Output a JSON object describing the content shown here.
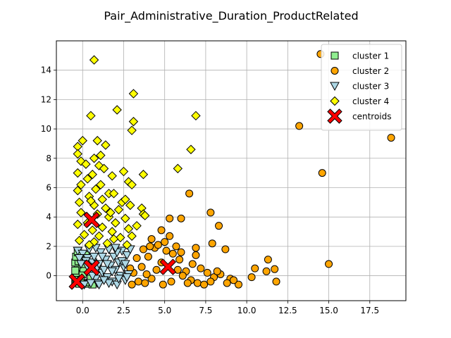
{
  "chart_data": {
    "type": "scatter",
    "title": "Pair_Administrative_Duration_ProductRelated",
    "xlabel": "",
    "ylabel": "",
    "xlim": [
      -1.6,
      19.7
    ],
    "ylim": [
      -1.7,
      16.0
    ],
    "xticks": [
      0.0,
      2.5,
      5.0,
      7.5,
      10.0,
      12.5,
      15.0,
      17.5
    ],
    "xtick_labels": [
      "0.0",
      "2.5",
      "5.0",
      "7.5",
      "10.0",
      "12.5",
      "15.0",
      "17.5"
    ],
    "yticks": [
      0,
      2,
      4,
      6,
      8,
      10,
      12,
      14
    ],
    "ytick_labels": [
      "0",
      "2",
      "4",
      "6",
      "8",
      "10",
      "12",
      "14"
    ],
    "grid": true,
    "legend_position": "top-right",
    "series": [
      {
        "name": "cluster 1",
        "marker": "square",
        "color": "#90ee90",
        "points": [
          [
            -0.45,
            -0.45
          ],
          [
            -0.4,
            -0.2
          ],
          [
            -0.35,
            0.2
          ],
          [
            -0.3,
            0.6
          ],
          [
            -0.45,
            0.9
          ],
          [
            -0.2,
            -0.55
          ],
          [
            -0.1,
            -0.3
          ],
          [
            0.0,
            0.1
          ],
          [
            0.05,
            0.5
          ],
          [
            -0.25,
            1.0
          ],
          [
            0.1,
            -0.5
          ],
          [
            0.3,
            -0.55
          ],
          [
            0.45,
            -0.45
          ],
          [
            0.6,
            -0.6
          ],
          [
            -0.4,
            1.3
          ],
          [
            0.15,
            0.8
          ],
          [
            0.2,
            1.4
          ],
          [
            -0.3,
            1.6
          ],
          [
            0.5,
            -0.2
          ],
          [
            -0.45,
            0.35
          ]
        ]
      },
      {
        "name": "cluster 2",
        "marker": "circle",
        "color": "#ffa500",
        "points": [
          [
            14.5,
            15.1
          ],
          [
            18.8,
            9.4
          ],
          [
            13.2,
            10.2
          ],
          [
            14.6,
            7.0
          ],
          [
            15.0,
            0.8
          ],
          [
            6.5,
            5.6
          ],
          [
            7.8,
            4.3
          ],
          [
            5.3,
            3.9
          ],
          [
            6.0,
            3.9
          ],
          [
            8.3,
            3.4
          ],
          [
            5.3,
            2.7
          ],
          [
            4.8,
            3.1
          ],
          [
            4.2,
            2.5
          ],
          [
            5.0,
            2.3
          ],
          [
            7.9,
            2.2
          ],
          [
            8.7,
            1.8
          ],
          [
            6.9,
            1.9
          ],
          [
            11.3,
            1.1
          ],
          [
            10.5,
            0.5
          ],
          [
            11.2,
            0.3
          ],
          [
            11.7,
            0.45
          ],
          [
            11.8,
            -0.4
          ],
          [
            10.3,
            -0.1
          ],
          [
            9.5,
            -0.6
          ],
          [
            9.0,
            -0.2
          ],
          [
            8.4,
            0.1
          ],
          [
            7.6,
            0.2
          ],
          [
            7.2,
            0.5
          ],
          [
            6.7,
            0.8
          ],
          [
            6.3,
            0.3
          ],
          [
            5.9,
            1.1
          ],
          [
            5.5,
            1.5
          ],
          [
            5.1,
            1.7
          ],
          [
            4.8,
            0.9
          ],
          [
            4.5,
            0.4
          ],
          [
            4.2,
            -0.2
          ],
          [
            3.9,
            0.1
          ],
          [
            3.6,
            0.6
          ],
          [
            3.4,
            -0.4
          ],
          [
            3.1,
            0.2
          ],
          [
            3.0,
            -0.6
          ],
          [
            2.9,
            0.5
          ],
          [
            3.3,
            1.2
          ],
          [
            3.7,
            1.8
          ],
          [
            4.0,
            1.3
          ],
          [
            4.4,
            1.9
          ],
          [
            4.6,
            2.1
          ],
          [
            5.7,
            2.0
          ],
          [
            6.1,
            0.0
          ],
          [
            6.6,
            -0.3
          ],
          [
            7.0,
            -0.5
          ],
          [
            7.4,
            -0.6
          ],
          [
            8.0,
            -0.1
          ],
          [
            8.8,
            -0.5
          ],
          [
            9.2,
            -0.3
          ],
          [
            6.9,
            1.4
          ],
          [
            6.0,
            1.6
          ],
          [
            5.4,
            -0.4
          ],
          [
            4.9,
            -0.6
          ],
          [
            3.8,
            -0.5
          ],
          [
            4.1,
            2.0
          ],
          [
            7.8,
            -0.4
          ],
          [
            8.2,
            0.3
          ],
          [
            5.8,
            0.4
          ],
          [
            6.4,
            -0.5
          ]
        ]
      },
      {
        "name": "cluster 3",
        "marker": "triangle-down",
        "color": "#add8e6",
        "points": [
          [
            -0.3,
            1.7
          ],
          [
            0.0,
            1.5
          ],
          [
            0.3,
            1.2
          ],
          [
            0.6,
            0.9
          ],
          [
            0.9,
            0.5
          ],
          [
            1.2,
            0.2
          ],
          [
            1.5,
            -0.1
          ],
          [
            1.8,
            -0.4
          ],
          [
            2.1,
            -0.6
          ],
          [
            2.4,
            1.7
          ],
          [
            2.7,
            1.4
          ],
          [
            0.2,
            1.0
          ],
          [
            0.5,
            0.3
          ],
          [
            0.8,
            -0.2
          ],
          [
            1.1,
            1.6
          ],
          [
            1.4,
            1.1
          ],
          [
            1.7,
            0.7
          ],
          [
            2.0,
            0.4
          ],
          [
            2.3,
            0.0
          ],
          [
            2.6,
            -0.3
          ],
          [
            0.1,
            -0.6
          ],
          [
            0.4,
            1.8
          ],
          [
            0.7,
            1.3
          ],
          [
            1.0,
            0.8
          ],
          [
            1.3,
            0.4
          ],
          [
            1.6,
            1.8
          ],
          [
            1.9,
            1.3
          ],
          [
            2.2,
            0.9
          ],
          [
            2.5,
            0.6
          ],
          [
            2.8,
            0.1
          ],
          [
            -0.2,
            1.2
          ],
          [
            0.3,
            0.6
          ],
          [
            0.6,
            0.0
          ],
          [
            0.9,
            -0.5
          ],
          [
            1.2,
            1.3
          ],
          [
            1.5,
            0.8
          ],
          [
            1.8,
            0.3
          ],
          [
            2.1,
            1.6
          ],
          [
            2.4,
            1.0
          ],
          [
            2.7,
            -0.1
          ],
          [
            1.0,
            -0.6
          ],
          [
            1.6,
            -0.5
          ],
          [
            2.0,
            1.9
          ],
          [
            0.5,
            -0.5
          ],
          [
            2.9,
            1.8
          ],
          [
            2.6,
            0.8
          ],
          [
            1.3,
            -0.3
          ],
          [
            0.8,
            1.9
          ],
          [
            -0.1,
            0.8
          ],
          [
            2.2,
            -0.2
          ]
        ]
      },
      {
        "name": "cluster 4",
        "marker": "diamond",
        "color": "#ffff00",
        "points": [
          [
            0.7,
            14.7
          ],
          [
            3.1,
            12.4
          ],
          [
            0.5,
            10.9
          ],
          [
            2.1,
            11.3
          ],
          [
            3.1,
            10.5
          ],
          [
            3.0,
            9.9
          ],
          [
            6.9,
            10.9
          ],
          [
            0.0,
            9.2
          ],
          [
            0.9,
            9.2
          ],
          [
            1.4,
            8.9
          ],
          [
            -0.3,
            8.8
          ],
          [
            -0.3,
            8.3
          ],
          [
            1.1,
            8.2
          ],
          [
            6.6,
            8.6
          ],
          [
            -0.1,
            7.8
          ],
          [
            0.7,
            8.0
          ],
          [
            1.0,
            7.5
          ],
          [
            1.3,
            7.3
          ],
          [
            5.8,
            7.3
          ],
          [
            -0.3,
            7.0
          ],
          [
            0.6,
            6.9
          ],
          [
            1.8,
            6.8
          ],
          [
            3.7,
            6.9
          ],
          [
            2.8,
            6.4
          ],
          [
            0.3,
            6.6
          ],
          [
            -0.1,
            6.2
          ],
          [
            0.8,
            5.9
          ],
          [
            1.6,
            5.6
          ],
          [
            3.0,
            6.2
          ],
          [
            -0.3,
            5.8
          ],
          [
            0.4,
            5.4
          ],
          [
            1.2,
            5.2
          ],
          [
            2.4,
            5.0
          ],
          [
            2.6,
            5.2
          ],
          [
            1.9,
            5.6
          ],
          [
            -0.2,
            5.0
          ],
          [
            0.7,
            4.8
          ],
          [
            1.4,
            4.6
          ],
          [
            2.2,
            4.5
          ],
          [
            3.6,
            4.6
          ],
          [
            3.7,
            4.2
          ],
          [
            3.8,
            4.1
          ],
          [
            -0.1,
            4.3
          ],
          [
            0.9,
            4.2
          ],
          [
            1.6,
            4.0
          ],
          [
            2.6,
            3.9
          ],
          [
            2.0,
            3.6
          ],
          [
            0.3,
            3.6
          ],
          [
            1.2,
            3.3
          ],
          [
            -0.3,
            3.5
          ],
          [
            0.6,
            3.1
          ],
          [
            1.8,
            3.0
          ],
          [
            2.8,
            3.2
          ],
          [
            3.3,
            3.4
          ],
          [
            0.1,
            2.8
          ],
          [
            1.0,
            2.7
          ],
          [
            2.3,
            2.6
          ],
          [
            3.0,
            2.7
          ],
          [
            -0.2,
            2.4
          ],
          [
            0.7,
            2.3
          ],
          [
            1.5,
            2.2
          ],
          [
            2.7,
            2.1
          ],
          [
            0.4,
            2.1
          ],
          [
            1.9,
            2.5
          ],
          [
            1.1,
            6.2
          ],
          [
            2.5,
            7.1
          ],
          [
            0.2,
            7.6
          ],
          [
            1.7,
            4.3
          ],
          [
            0.5,
            5.1
          ],
          [
            2.9,
            4.8
          ]
        ]
      },
      {
        "name": "centroids",
        "marker": "x-filled",
        "color": "#ff0000",
        "points": [
          [
            -0.35,
            -0.4
          ],
          [
            0.55,
            0.55
          ],
          [
            0.55,
            3.8
          ],
          [
            5.2,
            0.6
          ]
        ]
      }
    ]
  }
}
